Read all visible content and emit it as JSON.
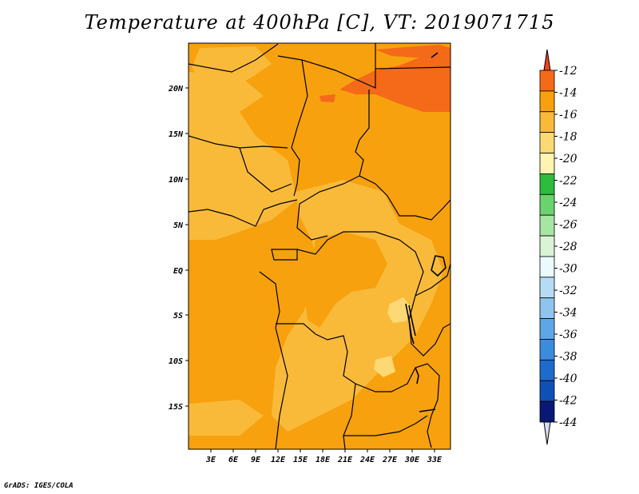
{
  "title": "Temperature at 400hPa [C], VT: 2019071715",
  "footer": "GrADS: IGES/COLA",
  "map": {
    "lat_labels": [
      "20N",
      "15N",
      "10N",
      "5N",
      "EQ",
      "5S",
      "10S",
      "15S"
    ],
    "lon_labels": [
      "3E",
      "6E",
      "9E",
      "12E",
      "15E",
      "18E",
      "21E",
      "24E",
      "27E",
      "30E",
      "33E"
    ]
  },
  "colorbar": {
    "labels": [
      "-12",
      "-14",
      "-16",
      "-18",
      "-20",
      "-22",
      "-24",
      "-26",
      "-28",
      "-30",
      "-32",
      "-34",
      "-36",
      "-38",
      "-40",
      "-42",
      "-44"
    ],
    "colors": [
      "#f46a18",
      "#f7a10e",
      "#f9ba3a",
      "#fcd975",
      "#fff4b0",
      "#2dbc3c",
      "#6ad36e",
      "#a6e6a3",
      "#d9f4d4",
      "#eafaff",
      "#b6dcf5",
      "#8ec5f0",
      "#5ea7e6",
      "#3b8ddc",
      "#1e6bcc",
      "#0f50b8",
      "#0a1875"
    ],
    "top_cap_color": "#f0421e",
    "bottom_cap_color": "#d7dcf2"
  }
}
